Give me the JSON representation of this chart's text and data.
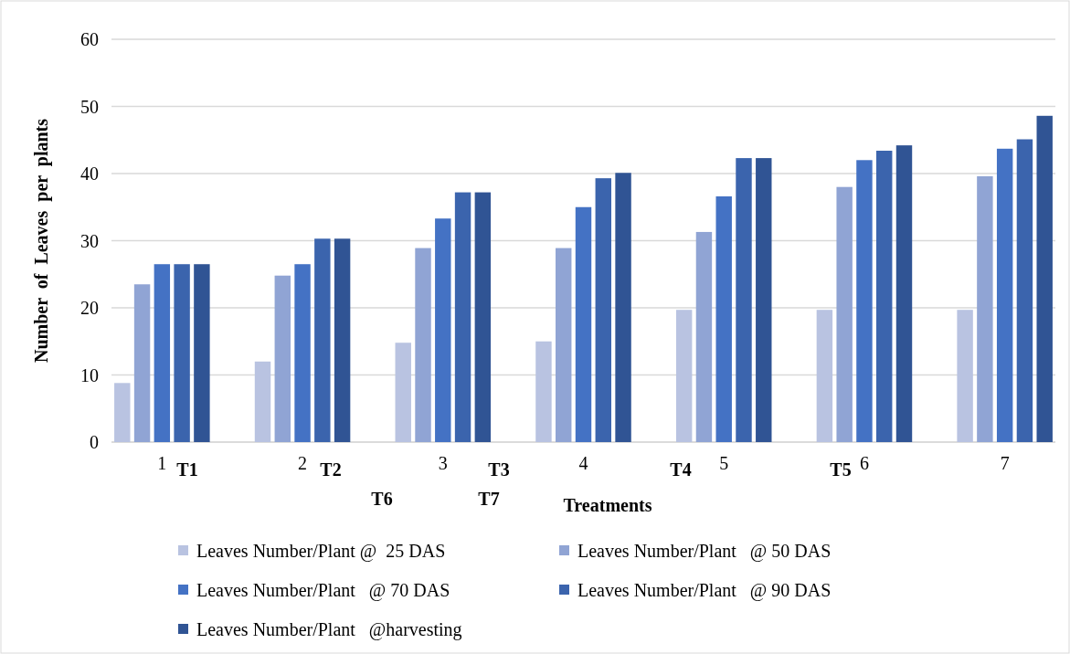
{
  "chart_data": {
    "type": "bar",
    "xlabel": "Treatments",
    "ylabel": "Number  of  Leaves  per  plants",
    "categories": [
      "1",
      "2",
      "3",
      "4",
      "5",
      "6",
      "7"
    ],
    "series": [
      {
        "name": "Leaves Number/Plant @  25 DAS",
        "color": "#b9c3e1",
        "values": [
          8.8,
          12.0,
          14.8,
          15.0,
          19.7,
          19.7,
          19.7
        ]
      },
      {
        "name": "Leaves Number/Plant   @ 50 DAS",
        "color": "#90a4d4",
        "values": [
          23.5,
          24.8,
          28.9,
          28.9,
          31.3,
          38.0,
          39.6
        ]
      },
      {
        "name": "Leaves Number/Plant   @ 70 DAS",
        "color": "#4472c4",
        "values": [
          26.5,
          26.5,
          33.3,
          35.0,
          36.6,
          42.0,
          43.7
        ]
      },
      {
        "name": "Leaves Number/Plant   @ 90 DAS",
        "color": "#3b64ad",
        "values": [
          26.5,
          30.3,
          37.2,
          39.3,
          42.3,
          43.4,
          45.1
        ]
      },
      {
        "name": "Leaves Number/Plant   @harvesting",
        "color": "#305494",
        "values": [
          26.5,
          30.3,
          37.2,
          40.1,
          42.3,
          44.2,
          48.6
        ]
      }
    ],
    "ylim": [
      0,
      60
    ],
    "yticks": [
      0,
      10,
      20,
      30,
      40,
      50,
      60
    ],
    "grid": "y",
    "legend": "bottom",
    "annotations": [
      "T1",
      "T2",
      "T3",
      "T4",
      "T5",
      "T6",
      "T7"
    ]
  }
}
